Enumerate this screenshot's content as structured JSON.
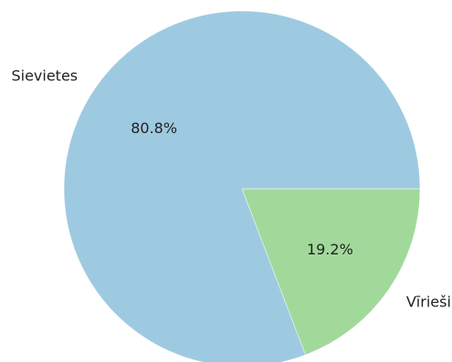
{
  "chart_data": {
    "type": "pie",
    "title": "",
    "categories": [
      "Vīrieši",
      "Sievietes"
    ],
    "values": [
      19.2,
      80.8
    ],
    "labels_pct": [
      "19.2%",
      "80.8%"
    ],
    "colors": [
      "#a1d99b",
      "#9ecae1"
    ],
    "start_angle_deg": 0,
    "direction": "clockwise"
  }
}
